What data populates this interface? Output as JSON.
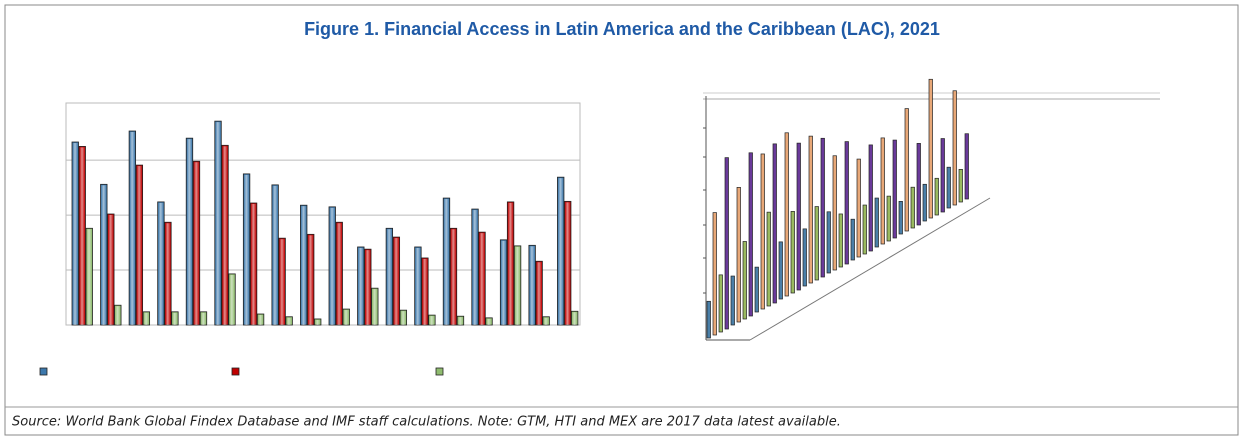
{
  "title": "Figure 1. Financial Access in Latin America and the Caribbean (LAC), 2021",
  "source": "Source: World Bank Global Findex Database and IMF staff calculations. Note: GTM, HTI and MEX are 2017 data latest available.",
  "chart_data": [
    {
      "type": "bar",
      "categories": [
        null,
        null,
        null,
        null,
        null,
        null,
        null,
        null,
        null,
        null,
        null,
        null,
        null,
        null,
        null,
        null,
        null,
        null
      ],
      "series": [
        {
          "color": "#3c78ac",
          "values": [
            3.33,
            2.56,
            3.53,
            2.24,
            3.4,
            3.71,
            2.75,
            2.55,
            2.18,
            2.15,
            1.42,
            1.76,
            1.42,
            2.31,
            2.11,
            1.55,
            1.45,
            2.69
          ]
        },
        {
          "color": "#c00000",
          "values": [
            3.25,
            2.02,
            2.91,
            1.87,
            2.98,
            3.27,
            2.22,
            1.58,
            1.65,
            1.87,
            1.38,
            1.6,
            1.22,
            1.76,
            1.69,
            2.24,
            1.16,
            2.25
          ]
        },
        {
          "color": "#8fbc6f",
          "values": [
            1.76,
            0.36,
            0.24,
            0.24,
            0.24,
            0.93,
            0.2,
            0.15,
            0.11,
            0.29,
            0.67,
            0.27,
            0.18,
            0.16,
            0.13,
            1.44,
            0.15,
            0.25
          ]
        }
      ],
      "ylim": [
        0,
        4.04
      ],
      "gridlines": [
        1,
        2,
        3
      ],
      "grid": true
    },
    {
      "type": "bar3d",
      "categories": [
        null,
        null,
        null,
        null,
        null,
        null,
        null,
        null,
        null,
        null,
        null
      ],
      "series": [
        {
          "color": "#4a7fa8",
          "values": [
            45,
            60,
            55,
            70,
            70,
            75,
            50,
            60,
            40,
            45,
            50
          ]
        },
        {
          "color": "#e8a878",
          "values": [
            150,
            165,
            190,
            200,
            180,
            140,
            120,
            130,
            150,
            170,
            140
          ]
        },
        {
          "color": "#9aba60",
          "values": [
            70,
            95,
            115,
            100,
            90,
            65,
            60,
            55,
            50,
            45,
            40
          ]
        },
        {
          "color": "#6a3a9a",
          "values": [
            210,
            200,
            195,
            180,
            170,
            150,
            130,
            120,
            100,
            90,
            80
          ]
        }
      ],
      "ylim": [
        0,
        250
      ]
    }
  ]
}
